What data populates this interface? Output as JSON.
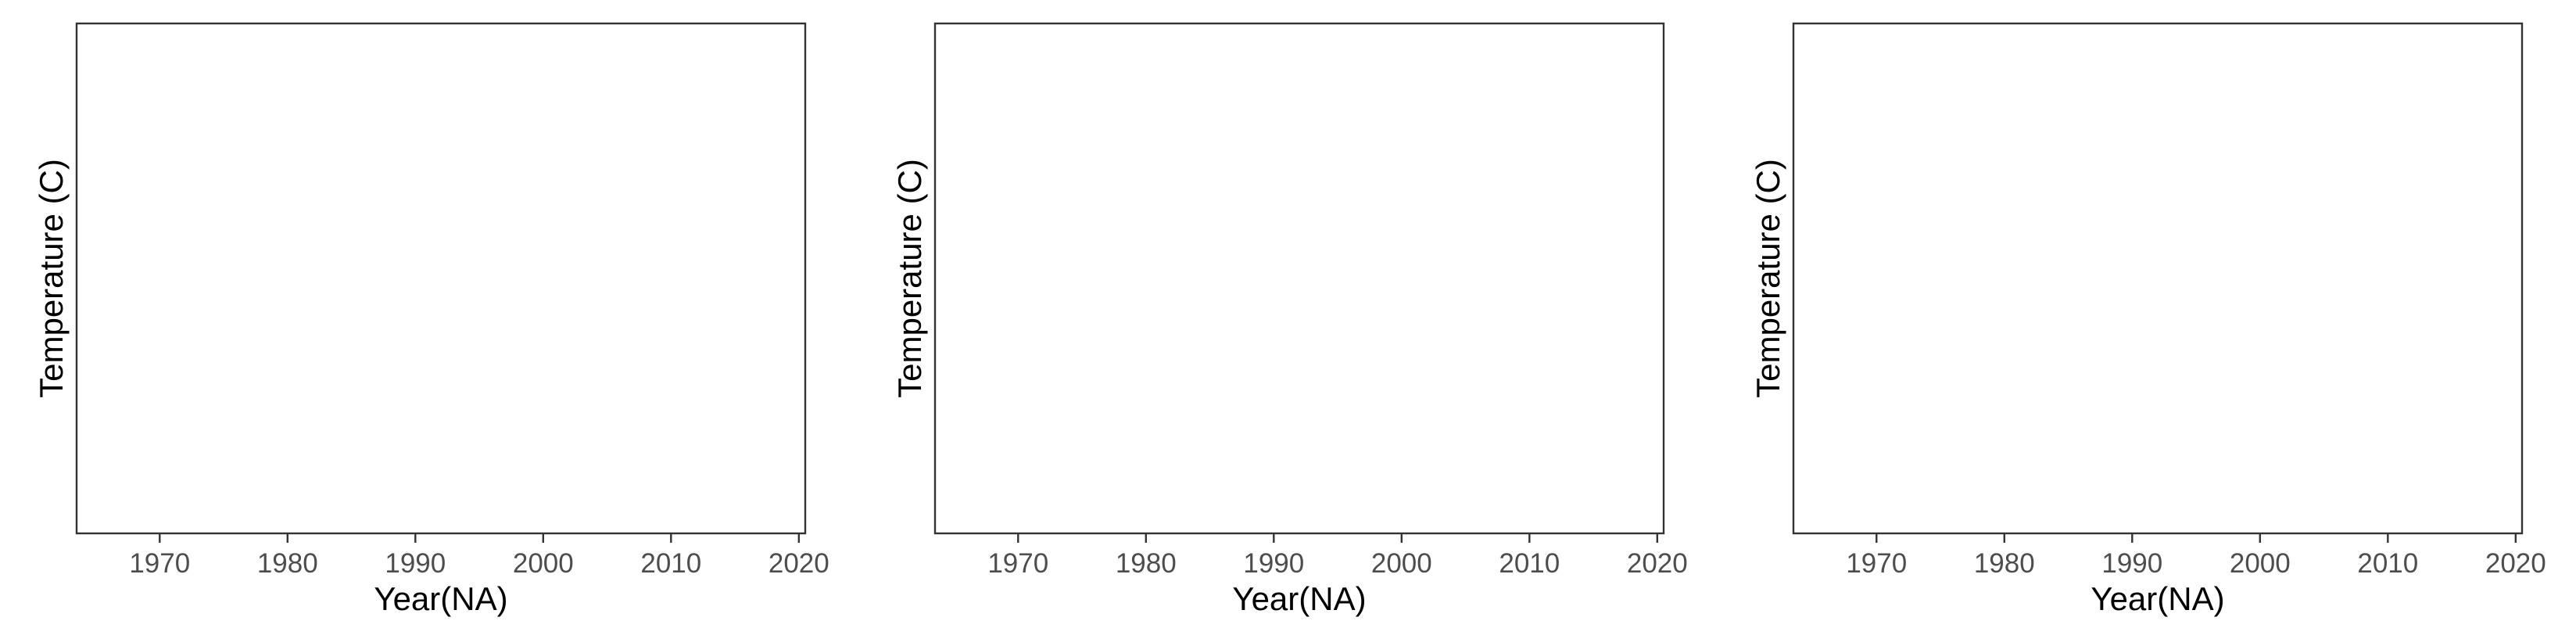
{
  "chart_data": [
    {
      "type": "line",
      "title": "",
      "xlabel": "Year(NA)",
      "ylabel": "Temperature (C)",
      "x_ticks": [
        1970,
        1980,
        1990,
        2000,
        2010,
        2020
      ],
      "xlim": [
        1963.5,
        2020.5
      ],
      "series": [],
      "grid": false,
      "legend": "none"
    },
    {
      "type": "line",
      "title": "",
      "xlabel": "Year(NA)",
      "ylabel": "Temperature (C)",
      "x_ticks": [
        1970,
        1980,
        1990,
        2000,
        2010,
        2020
      ],
      "xlim": [
        1963.5,
        2020.5
      ],
      "series": [],
      "grid": false,
      "legend": "none"
    },
    {
      "type": "line",
      "title": "",
      "xlabel": "Year(NA)",
      "ylabel": "Temperature (C)",
      "x_ticks": [
        1970,
        1980,
        1990,
        2000,
        2010,
        2020
      ],
      "xlim": [
        1963.5,
        2020.5
      ],
      "series": [],
      "grid": false,
      "legend": "none"
    }
  ]
}
